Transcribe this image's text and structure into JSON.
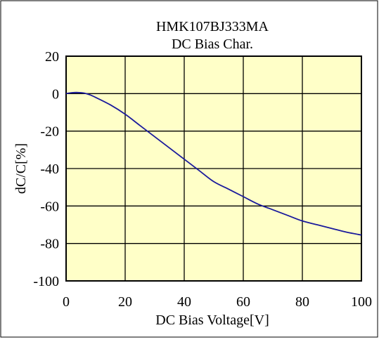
{
  "colors": {
    "plot_background": "#ffffc8",
    "grid": "#000000",
    "curve": "#1a1a9c",
    "frame": "#000000"
  },
  "chart_data": {
    "type": "line",
    "title": "HMK107BJ333MA",
    "subtitle": "DC Bias Char.",
    "xlabel": "DC Bias Voltage[V]",
    "ylabel": "dC/C[%]",
    "xlim": [
      0,
      100
    ],
    "ylim": [
      -100,
      20
    ],
    "x_ticks": [
      0,
      20,
      40,
      60,
      80,
      100
    ],
    "y_ticks": [
      20,
      0,
      -20,
      -40,
      -60,
      -80,
      -100
    ],
    "x_tick_labels": [
      "0",
      "20",
      "40",
      "60",
      "80",
      "100"
    ],
    "y_tick_labels": [
      "20",
      "0",
      "-20",
      "-40",
      "-60",
      "-80",
      "-100"
    ],
    "grid": true,
    "legend": "none",
    "series": [
      {
        "x": [
          0,
          2,
          4,
          6,
          8,
          10,
          15,
          20,
          25,
          30,
          35,
          40,
          45,
          50,
          55,
          60,
          65,
          70,
          75,
          80,
          85,
          90,
          95,
          100
        ],
        "y": [
          0,
          0.5,
          0.6,
          0.3,
          -0.6,
          -2,
          -6,
          -11,
          -17,
          -23,
          -29,
          -35,
          -41,
          -47,
          -51,
          -55,
          -59,
          -62,
          -65,
          -68,
          -70,
          -72,
          -74,
          -75.5
        ]
      }
    ]
  }
}
